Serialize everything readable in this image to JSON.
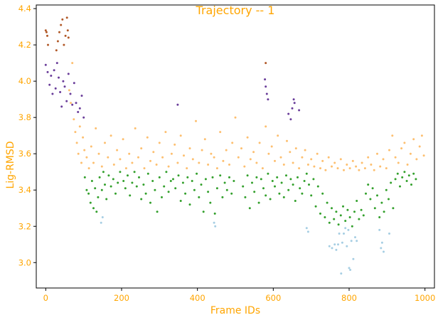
{
  "chart_data": {
    "type": "scatter",
    "title": "Trajectory -- 1",
    "xlabel": "Frame IDs",
    "ylabel": "Lig-RMSD",
    "xlim": [
      -25,
      1025
    ],
    "ylim": [
      2.86,
      4.42
    ],
    "xticks": [
      "0",
      "200",
      "400",
      "600",
      "800",
      "1000"
    ],
    "yticks": [
      "3.0",
      "3.2",
      "3.4",
      "3.6",
      "3.8",
      "4.0",
      "4.2",
      "4.4"
    ],
    "grid": false,
    "legend": "none",
    "colors": {
      "accent": "#ffa500",
      "axis": "#000000"
    },
    "series": [
      {
        "color": "#a6cee3",
        "x": [
          146,
          150,
          444,
          447,
          688,
          692,
          748,
          755,
          762,
          766,
          771,
          774,
          779,
          782,
          786,
          790,
          794,
          798,
          800,
          803,
          806,
          811,
          816,
          820,
          880,
          884,
          887,
          891,
          906
        ],
        "y": [
          3.22,
          3.25,
          3.22,
          3.2,
          3.19,
          3.17,
          3.09,
          3.08,
          3.1,
          3.07,
          3.1,
          3.16,
          2.94,
          3.11,
          3.16,
          3.19,
          3.09,
          3.18,
          2.97,
          2.96,
          3.12,
          3.02,
          3.14,
          3.12,
          3.18,
          3.08,
          3.11,
          3.06,
          3.16
        ]
      },
      {
        "color": "#33a02c",
        "x": [
          103,
          108,
          113,
          118,
          122,
          126,
          130,
          134,
          138,
          142,
          148,
          152,
          156,
          160,
          166,
          172,
          178,
          184,
          190,
          196,
          205,
          210,
          216,
          222,
          228,
          234,
          240,
          246,
          252,
          258,
          264,
          270,
          276,
          282,
          288,
          294,
          300,
          306,
          312,
          318,
          324,
          330,
          336,
          342,
          350,
          356,
          362,
          368,
          374,
          380,
          386,
          392,
          398,
          404,
          410,
          416,
          422,
          428,
          434,
          440,
          446,
          452,
          460,
          466,
          472,
          478,
          484,
          490,
          496,
          520,
          526,
          532,
          538,
          544,
          550,
          556,
          562,
          568,
          574,
          580,
          586,
          592,
          598,
          604,
          610,
          616,
          622,
          628,
          634,
          640,
          646,
          652,
          658,
          664,
          670,
          676,
          682,
          688,
          694,
          700,
          706,
          712,
          718,
          724,
          730,
          736,
          742,
          748,
          754,
          760,
          766,
          772,
          778,
          784,
          790,
          796,
          802,
          808,
          814,
          820,
          826,
          832,
          838,
          844,
          850,
          856,
          862,
          868,
          874,
          880,
          886,
          892,
          898,
          904,
          910,
          916,
          922,
          928,
          934,
          940,
          946,
          952,
          958,
          964,
          970,
          976
        ],
        "y": [
          3.47,
          3.4,
          3.38,
          3.33,
          3.45,
          3.3,
          3.41,
          3.28,
          3.36,
          3.47,
          3.4,
          3.5,
          3.43,
          3.35,
          3.48,
          3.42,
          3.46,
          3.38,
          3.44,
          3.5,
          3.45,
          3.41,
          3.48,
          3.37,
          3.44,
          3.5,
          3.42,
          3.47,
          3.35,
          3.43,
          3.38,
          3.49,
          3.33,
          3.45,
          3.4,
          3.28,
          3.47,
          3.36,
          3.42,
          3.5,
          3.39,
          3.45,
          3.46,
          3.41,
          3.48,
          3.34,
          3.44,
          3.38,
          3.47,
          3.32,
          3.45,
          3.4,
          3.49,
          3.36,
          3.43,
          3.28,
          3.46,
          3.39,
          3.33,
          3.47,
          3.27,
          3.41,
          3.48,
          3.36,
          3.44,
          3.4,
          3.47,
          3.38,
          3.45,
          3.42,
          3.36,
          3.48,
          3.3,
          3.44,
          3.39,
          3.47,
          3.33,
          3.46,
          3.41,
          3.37,
          3.49,
          3.35,
          3.45,
          3.42,
          3.47,
          3.38,
          3.44,
          3.36,
          3.48,
          3.4,
          3.46,
          3.43,
          3.34,
          3.47,
          3.41,
          3.38,
          3.45,
          3.49,
          3.43,
          3.37,
          3.46,
          3.31,
          3.42,
          3.27,
          3.38,
          3.25,
          3.33,
          3.22,
          3.3,
          3.24,
          3.28,
          3.21,
          3.26,
          3.31,
          3.23,
          3.29,
          3.25,
          3.2,
          3.28,
          3.34,
          3.24,
          3.29,
          3.26,
          3.38,
          3.43,
          3.35,
          3.41,
          3.3,
          3.37,
          3.25,
          3.33,
          3.28,
          3.4,
          3.35,
          3.44,
          3.3,
          3.46,
          3.49,
          3.42,
          3.47,
          3.5,
          3.45,
          3.48,
          3.43,
          3.49,
          3.46
        ]
      },
      {
        "color": "#fdbf6f",
        "x": [
          62,
          66,
          70,
          74,
          78,
          82,
          86,
          90,
          94,
          98,
          102,
          108,
          114,
          120,
          126,
          132,
          140,
          148,
          156,
          164,
          172,
          180,
          188,
          196,
          204,
          212,
          220,
          228,
          236,
          244,
          252,
          260,
          268,
          276,
          284,
          292,
          300,
          308,
          316,
          324,
          332,
          340,
          348,
          356,
          364,
          372,
          380,
          388,
          396,
          404,
          412,
          420,
          428,
          436,
          444,
          452,
          460,
          468,
          476,
          484,
          492,
          500,
          508,
          516,
          524,
          532,
          540,
          548,
          556,
          564,
          572,
          580,
          588,
          596,
          604,
          612,
          620,
          628,
          636,
          644,
          652,
          660,
          668,
          676,
          684,
          692,
          700,
          708,
          716,
          724,
          730,
          738,
          746,
          754,
          762,
          770,
          778,
          786,
          794,
          802,
          810,
          818,
          826,
          834,
          842,
          850,
          858,
          866,
          874,
          882,
          890,
          898,
          906,
          914,
          922,
          930,
          938,
          946,
          954,
          962,
          970,
          978,
          986,
          992,
          997
        ],
        "y": [
          3.95,
          3.88,
          4.1,
          3.79,
          3.72,
          3.66,
          3.6,
          3.75,
          3.55,
          3.69,
          3.62,
          3.58,
          3.52,
          3.64,
          3.55,
          3.74,
          3.6,
          3.53,
          3.66,
          3.58,
          3.7,
          3.54,
          3.62,
          3.57,
          3.68,
          3.52,
          3.6,
          3.55,
          3.74,
          3.58,
          3.63,
          3.52,
          3.69,
          3.56,
          3.61,
          3.54,
          3.66,
          3.58,
          3.72,
          3.53,
          3.6,
          3.65,
          3.55,
          3.7,
          3.59,
          3.52,
          3.63,
          3.57,
          3.78,
          3.55,
          3.62,
          3.68,
          3.54,
          3.6,
          3.58,
          3.52,
          3.72,
          3.56,
          3.62,
          3.54,
          3.66,
          3.8,
          3.58,
          3.63,
          3.53,
          3.69,
          3.57,
          3.61,
          3.55,
          3.66,
          3.52,
          3.75,
          3.6,
          3.64,
          3.56,
          3.7,
          3.58,
          3.54,
          3.67,
          3.61,
          3.55,
          3.63,
          3.52,
          3.58,
          3.62,
          3.54,
          3.57,
          3.53,
          3.6,
          3.52,
          3.56,
          3.51,
          3.58,
          3.53,
          3.55,
          3.52,
          3.57,
          3.51,
          3.54,
          3.52,
          3.56,
          3.53,
          3.51,
          3.55,
          3.52,
          3.58,
          3.54,
          3.51,
          3.6,
          3.53,
          3.57,
          3.52,
          3.62,
          3.7,
          3.58,
          3.55,
          3.63,
          3.66,
          3.54,
          3.6,
          3.68,
          3.57,
          3.64,
          3.7,
          3.59
        ]
      },
      {
        "color": "#6a3d9a",
        "x": [
          0,
          5,
          10,
          14,
          18,
          22,
          26,
          30,
          34,
          38,
          42,
          46,
          50,
          55,
          60,
          65,
          70,
          75,
          80,
          85,
          90,
          95,
          100,
          348,
          578,
          580,
          583,
          586,
          640,
          646,
          650,
          654,
          656,
          668
        ],
        "y": [
          4.09,
          4.05,
          3.98,
          4.03,
          3.93,
          4.06,
          3.96,
          4.1,
          4.02,
          3.94,
          3.86,
          4.0,
          3.97,
          3.89,
          4.04,
          3.93,
          3.87,
          3.99,
          3.88,
          3.83,
          3.85,
          3.92,
          3.8,
          3.87,
          4.01,
          3.97,
          3.93,
          3.9,
          3.82,
          3.79,
          3.85,
          3.9,
          3.88,
          3.84
        ]
      },
      {
        "color": "#b15928",
        "x": [
          0,
          2,
          4,
          6,
          28,
          32,
          36,
          40,
          44,
          48,
          52,
          56,
          58,
          60,
          580
        ],
        "y": [
          4.28,
          4.27,
          4.25,
          4.2,
          4.17,
          4.22,
          4.27,
          4.31,
          4.34,
          4.2,
          4.25,
          4.35,
          4.28,
          4.24,
          4.1
        ]
      }
    ]
  }
}
